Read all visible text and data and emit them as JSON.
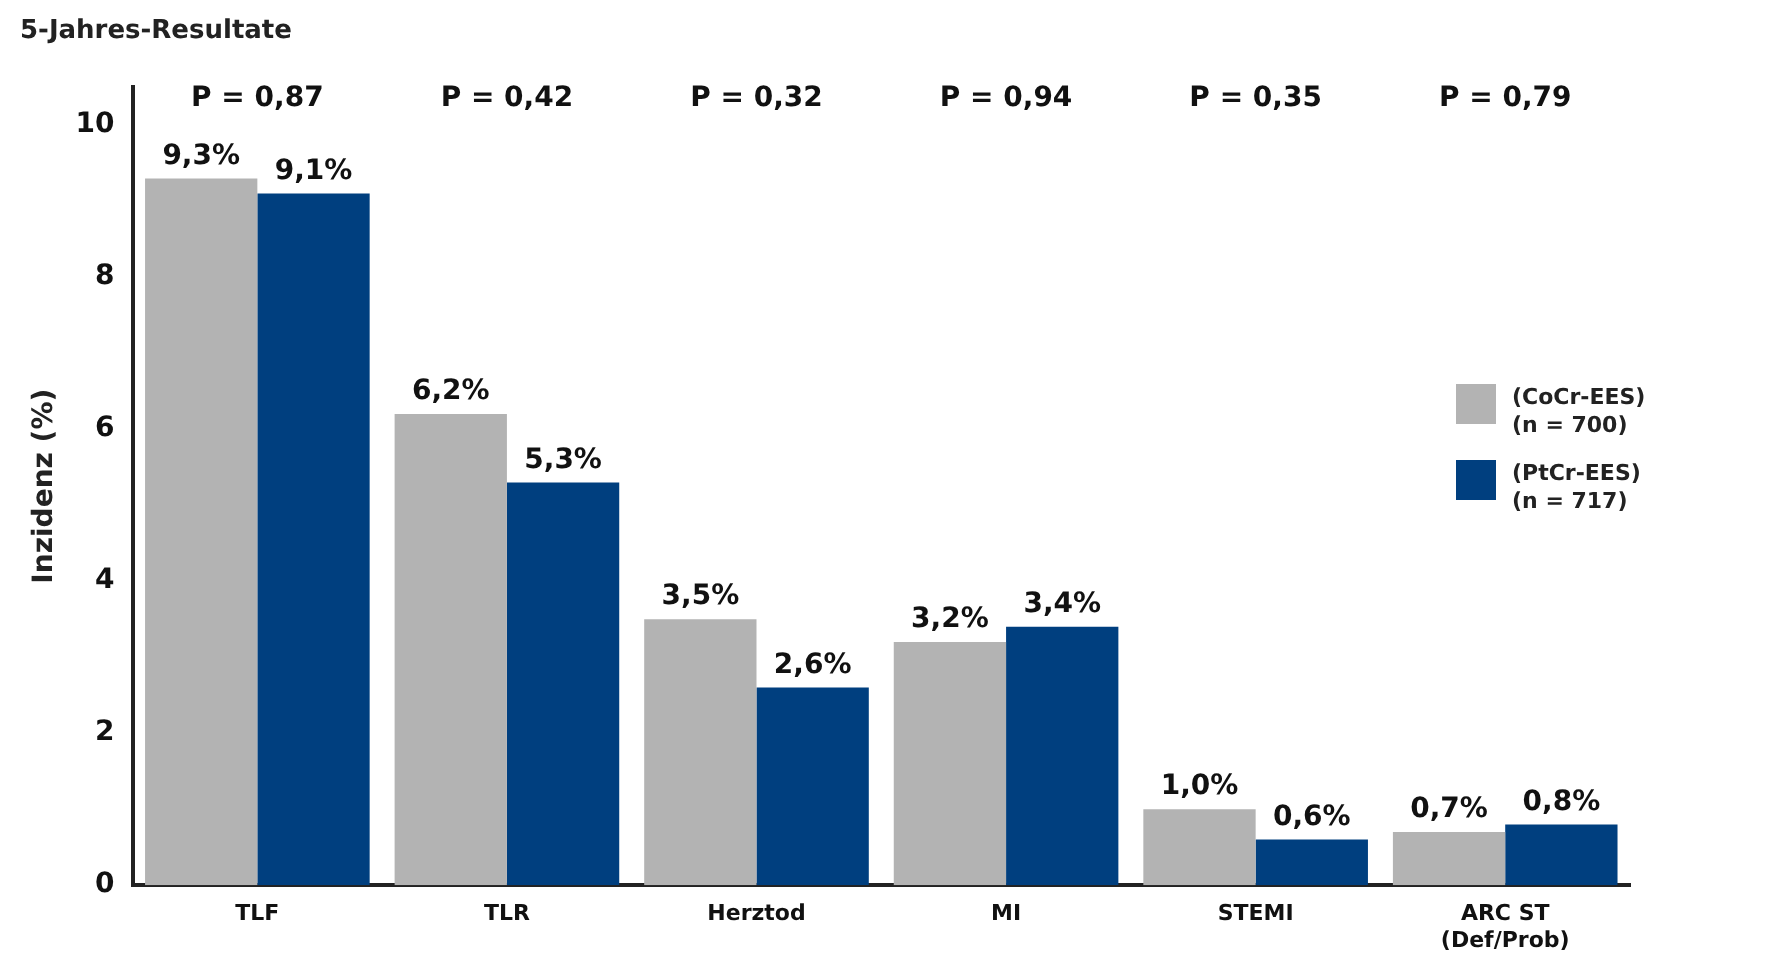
{
  "chart_data": {
    "type": "bar",
    "title": "5-Jahres-Resultate",
    "ylabel": "Inzidenz (%)",
    "categories": [
      "TLF",
      "TLR",
      "Herztod",
      "MI",
      "STEMI",
      "ARC ST\n(Def/Prob)"
    ],
    "series": [
      {
        "name": "(CoCr-EES)\n(n = 700)",
        "color": "#b3b3b3",
        "values": [
          9.3,
          6.2,
          3.5,
          3.2,
          1.0,
          0.7
        ],
        "value_labels": [
          "9,3%",
          "6,2%",
          "3,5%",
          "3,2%",
          "1,0%",
          "0,7%"
        ]
      },
      {
        "name": "(PtCr-EES)\n(n = 717)",
        "color": "#003f7f",
        "values": [
          9.1,
          5.3,
          2.6,
          3.4,
          0.6,
          0.8
        ],
        "value_labels": [
          "9,1%",
          "5,3%",
          "2,6%",
          "3,4%",
          "0,6%",
          "0,8%"
        ]
      }
    ],
    "annotations": [
      "P = 0,87",
      "P = 0,42",
      "P = 0,32",
      "P = 0,94",
      "P = 0,35",
      "P = 0,79"
    ],
    "ylim": [
      0,
      10.5
    ],
    "yticks": [
      0,
      2,
      4,
      6,
      8,
      10
    ],
    "grid": false,
    "legend": "right"
  }
}
